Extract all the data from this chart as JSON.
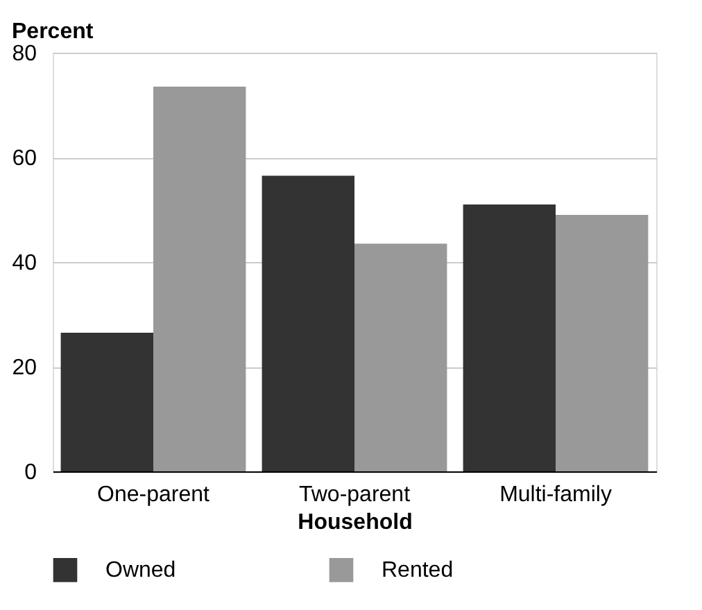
{
  "chart_data": {
    "type": "bar",
    "xlabel": "Household",
    "ylabel": "Percent",
    "categories": [
      "One-parent",
      "Two-parent",
      "Multi-family"
    ],
    "series": [
      {
        "name": "Owned",
        "color": "#333333",
        "values": [
          26.5,
          56.5,
          51
        ]
      },
      {
        "name": "Rented",
        "color": "#999999",
        "values": [
          73.5,
          43.5,
          49
        ]
      }
    ],
    "ylim": [
      0,
      80
    ],
    "yticks": [
      0,
      20,
      40,
      60,
      80
    ],
    "grid": "y",
    "legend": "bottom"
  }
}
